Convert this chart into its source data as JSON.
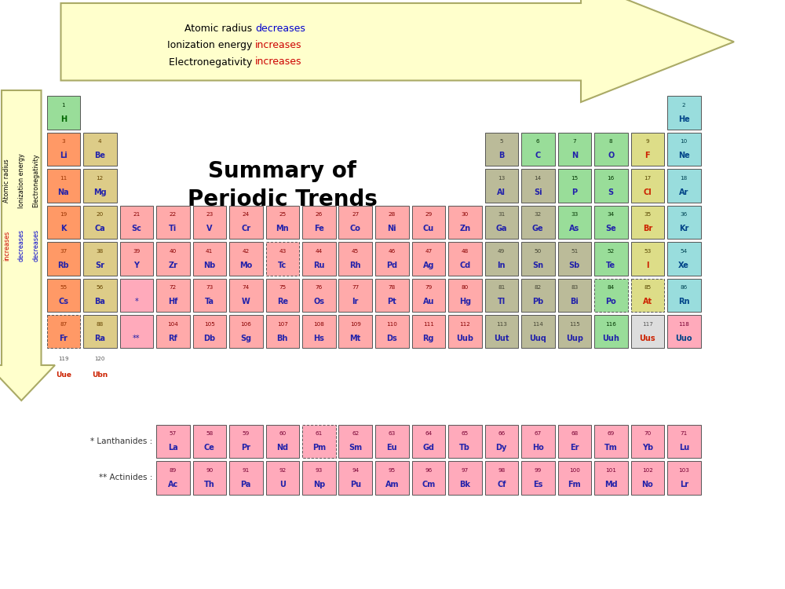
{
  "title": "Summary of\nPeriodic Trends",
  "elements": [
    {
      "sym": "H",
      "num": 1,
      "col": 1,
      "row": 1,
      "color": "#99DD99"
    },
    {
      "sym": "He",
      "num": 2,
      "col": 18,
      "row": 1,
      "color": "#99DDDD"
    },
    {
      "sym": "Li",
      "num": 3,
      "col": 1,
      "row": 2,
      "color": "#FF9966"
    },
    {
      "sym": "Be",
      "num": 4,
      "col": 2,
      "row": 2,
      "color": "#DDCC88"
    },
    {
      "sym": "B",
      "num": 5,
      "col": 13,
      "row": 2,
      "color": "#BBBB99"
    },
    {
      "sym": "C",
      "num": 6,
      "col": 14,
      "row": 2,
      "color": "#99DD99"
    },
    {
      "sym": "N",
      "num": 7,
      "col": 15,
      "row": 2,
      "color": "#99DD99"
    },
    {
      "sym": "O",
      "num": 8,
      "col": 16,
      "row": 2,
      "color": "#99DD99"
    },
    {
      "sym": "F",
      "num": 9,
      "col": 17,
      "row": 2,
      "color": "#DDDD88"
    },
    {
      "sym": "Ne",
      "num": 10,
      "col": 18,
      "row": 2,
      "color": "#99DDDD"
    },
    {
      "sym": "Na",
      "num": 11,
      "col": 1,
      "row": 3,
      "color": "#FF9966"
    },
    {
      "sym": "Mg",
      "num": 12,
      "col": 2,
      "row": 3,
      "color": "#DDCC88"
    },
    {
      "sym": "Al",
      "num": 13,
      "col": 13,
      "row": 3,
      "color": "#BBBB99"
    },
    {
      "sym": "Si",
      "num": 14,
      "col": 14,
      "row": 3,
      "color": "#BBBB99"
    },
    {
      "sym": "P",
      "num": 15,
      "col": 15,
      "row": 3,
      "color": "#99DD99"
    },
    {
      "sym": "S",
      "num": 16,
      "col": 16,
      "row": 3,
      "color": "#99DD99"
    },
    {
      "sym": "Cl",
      "num": 17,
      "col": 17,
      "row": 3,
      "color": "#DDDD88"
    },
    {
      "sym": "Ar",
      "num": 18,
      "col": 18,
      "row": 3,
      "color": "#99DDDD"
    },
    {
      "sym": "K",
      "num": 19,
      "col": 1,
      "row": 4,
      "color": "#FF9966"
    },
    {
      "sym": "Ca",
      "num": 20,
      "col": 2,
      "row": 4,
      "color": "#DDCC88"
    },
    {
      "sym": "Sc",
      "num": 21,
      "col": 3,
      "row": 4,
      "color": "#FFAAAA"
    },
    {
      "sym": "Ti",
      "num": 22,
      "col": 4,
      "row": 4,
      "color": "#FFAAAA"
    },
    {
      "sym": "V",
      "num": 23,
      "col": 5,
      "row": 4,
      "color": "#FFAAAA"
    },
    {
      "sym": "Cr",
      "num": 24,
      "col": 6,
      "row": 4,
      "color": "#FFAAAA"
    },
    {
      "sym": "Mn",
      "num": 25,
      "col": 7,
      "row": 4,
      "color": "#FFAAAA"
    },
    {
      "sym": "Fe",
      "num": 26,
      "col": 8,
      "row": 4,
      "color": "#FFAAAA"
    },
    {
      "sym": "Co",
      "num": 27,
      "col": 9,
      "row": 4,
      "color": "#FFAAAA"
    },
    {
      "sym": "Ni",
      "num": 28,
      "col": 10,
      "row": 4,
      "color": "#FFAAAA"
    },
    {
      "sym": "Cu",
      "num": 29,
      "col": 11,
      "row": 4,
      "color": "#FFAAAA"
    },
    {
      "sym": "Zn",
      "num": 30,
      "col": 12,
      "row": 4,
      "color": "#FFAAAA"
    },
    {
      "sym": "Ga",
      "num": 31,
      "col": 13,
      "row": 4,
      "color": "#BBBB99"
    },
    {
      "sym": "Ge",
      "num": 32,
      "col": 14,
      "row": 4,
      "color": "#BBBB99"
    },
    {
      "sym": "As",
      "num": 33,
      "col": 15,
      "row": 4,
      "color": "#99DD99"
    },
    {
      "sym": "Se",
      "num": 34,
      "col": 16,
      "row": 4,
      "color": "#99DD99"
    },
    {
      "sym": "Br",
      "num": 35,
      "col": 17,
      "row": 4,
      "color": "#DDDD88"
    },
    {
      "sym": "Kr",
      "num": 36,
      "col": 18,
      "row": 4,
      "color": "#99DDDD"
    },
    {
      "sym": "Rb",
      "num": 37,
      "col": 1,
      "row": 5,
      "color": "#FF9966"
    },
    {
      "sym": "Sr",
      "num": 38,
      "col": 2,
      "row": 5,
      "color": "#DDCC88"
    },
    {
      "sym": "Y",
      "num": 39,
      "col": 3,
      "row": 5,
      "color": "#FFAAAA"
    },
    {
      "sym": "Zr",
      "num": 40,
      "col": 4,
      "row": 5,
      "color": "#FFAAAA"
    },
    {
      "sym": "Nb",
      "num": 41,
      "col": 5,
      "row": 5,
      "color": "#FFAAAA"
    },
    {
      "sym": "Mo",
      "num": 42,
      "col": 6,
      "row": 5,
      "color": "#FFAAAA"
    },
    {
      "sym": "Tc",
      "num": 43,
      "col": 7,
      "row": 5,
      "color": "#FFAAAA",
      "dashed": true
    },
    {
      "sym": "Ru",
      "num": 44,
      "col": 8,
      "row": 5,
      "color": "#FFAAAA"
    },
    {
      "sym": "Rh",
      "num": 45,
      "col": 9,
      "row": 5,
      "color": "#FFAAAA"
    },
    {
      "sym": "Pd",
      "num": 46,
      "col": 10,
      "row": 5,
      "color": "#FFAAAA"
    },
    {
      "sym": "Ag",
      "num": 47,
      "col": 11,
      "row": 5,
      "color": "#FFAAAA"
    },
    {
      "sym": "Cd",
      "num": 48,
      "col": 12,
      "row": 5,
      "color": "#FFAAAA"
    },
    {
      "sym": "In",
      "num": 49,
      "col": 13,
      "row": 5,
      "color": "#BBBB99"
    },
    {
      "sym": "Sn",
      "num": 50,
      "col": 14,
      "row": 5,
      "color": "#BBBB99"
    },
    {
      "sym": "Sb",
      "num": 51,
      "col": 15,
      "row": 5,
      "color": "#BBBB99"
    },
    {
      "sym": "Te",
      "num": 52,
      "col": 16,
      "row": 5,
      "color": "#99DD99"
    },
    {
      "sym": "I",
      "num": 53,
      "col": 17,
      "row": 5,
      "color": "#DDDD88"
    },
    {
      "sym": "Xe",
      "num": 54,
      "col": 18,
      "row": 5,
      "color": "#99DDDD"
    },
    {
      "sym": "Cs",
      "num": 55,
      "col": 1,
      "row": 6,
      "color": "#FF9966"
    },
    {
      "sym": "Ba",
      "num": 56,
      "col": 2,
      "row": 6,
      "color": "#DDCC88"
    },
    {
      "sym": "*",
      "num": null,
      "col": 3,
      "row": 6,
      "color": "#FFAABB"
    },
    {
      "sym": "Hf",
      "num": 72,
      "col": 4,
      "row": 6,
      "color": "#FFAAAA"
    },
    {
      "sym": "Ta",
      "num": 73,
      "col": 5,
      "row": 6,
      "color": "#FFAAAA"
    },
    {
      "sym": "W",
      "num": 74,
      "col": 6,
      "row": 6,
      "color": "#FFAAAA"
    },
    {
      "sym": "Re",
      "num": 75,
      "col": 7,
      "row": 6,
      "color": "#FFAAAA"
    },
    {
      "sym": "Os",
      "num": 76,
      "col": 8,
      "row": 6,
      "color": "#FFAAAA"
    },
    {
      "sym": "Ir",
      "num": 77,
      "col": 9,
      "row": 6,
      "color": "#FFAAAA"
    },
    {
      "sym": "Pt",
      "num": 78,
      "col": 10,
      "row": 6,
      "color": "#FFAAAA"
    },
    {
      "sym": "Au",
      "num": 79,
      "col": 11,
      "row": 6,
      "color": "#FFAAAA"
    },
    {
      "sym": "Hg",
      "num": 80,
      "col": 12,
      "row": 6,
      "color": "#FFAAAA"
    },
    {
      "sym": "Tl",
      "num": 81,
      "col": 13,
      "row": 6,
      "color": "#BBBB99"
    },
    {
      "sym": "Pb",
      "num": 82,
      "col": 14,
      "row": 6,
      "color": "#BBBB99"
    },
    {
      "sym": "Bi",
      "num": 83,
      "col": 15,
      "row": 6,
      "color": "#BBBB99"
    },
    {
      "sym": "Po",
      "num": 84,
      "col": 16,
      "row": 6,
      "color": "#99DD99",
      "dashed": true
    },
    {
      "sym": "At",
      "num": 85,
      "col": 17,
      "row": 6,
      "color": "#DDDD88",
      "dashed": true
    },
    {
      "sym": "Rn",
      "num": 86,
      "col": 18,
      "row": 6,
      "color": "#99DDDD"
    },
    {
      "sym": "Fr",
      "num": 87,
      "col": 1,
      "row": 7,
      "color": "#FF9966",
      "dashed": true
    },
    {
      "sym": "Ra",
      "num": 88,
      "col": 2,
      "row": 7,
      "color": "#DDCC88"
    },
    {
      "sym": "**",
      "num": null,
      "col": 3,
      "row": 7,
      "color": "#FFAABB"
    },
    {
      "sym": "Rf",
      "num": 104,
      "col": 4,
      "row": 7,
      "color": "#FFAAAA"
    },
    {
      "sym": "Db",
      "num": 105,
      "col": 5,
      "row": 7,
      "color": "#FFAAAA"
    },
    {
      "sym": "Sg",
      "num": 106,
      "col": 6,
      "row": 7,
      "color": "#FFAAAA"
    },
    {
      "sym": "Bh",
      "num": 107,
      "col": 7,
      "row": 7,
      "color": "#FFAAAA"
    },
    {
      "sym": "Hs",
      "num": 108,
      "col": 8,
      "row": 7,
      "color": "#FFAAAA"
    },
    {
      "sym": "Mt",
      "num": 109,
      "col": 9,
      "row": 7,
      "color": "#FFAAAA"
    },
    {
      "sym": "Ds",
      "num": 110,
      "col": 10,
      "row": 7,
      "color": "#FFAAAA"
    },
    {
      "sym": "Rg",
      "num": 111,
      "col": 11,
      "row": 7,
      "color": "#FFAAAA"
    },
    {
      "sym": "Uub",
      "num": 112,
      "col": 12,
      "row": 7,
      "color": "#FFAAAA"
    },
    {
      "sym": "Uut",
      "num": 113,
      "col": 13,
      "row": 7,
      "color": "#BBBB99"
    },
    {
      "sym": "Uuq",
      "num": 114,
      "col": 14,
      "row": 7,
      "color": "#BBBB99"
    },
    {
      "sym": "Uup",
      "num": 115,
      "col": 15,
      "row": 7,
      "color": "#BBBB99"
    },
    {
      "sym": "Uuh",
      "num": 116,
      "col": 16,
      "row": 7,
      "color": "#99DD99"
    },
    {
      "sym": "Uus",
      "num": 117,
      "col": 17,
      "row": 7,
      "color": "#DDDDDD"
    },
    {
      "sym": "Uuo",
      "num": 118,
      "col": 18,
      "row": 7,
      "color": "#FFAABB"
    },
    {
      "sym": "La",
      "num": 57,
      "col": 4,
      "row": 10,
      "color": "#FFAABB"
    },
    {
      "sym": "Ce",
      "num": 58,
      "col": 5,
      "row": 10,
      "color": "#FFAABB"
    },
    {
      "sym": "Pr",
      "num": 59,
      "col": 6,
      "row": 10,
      "color": "#FFAABB"
    },
    {
      "sym": "Nd",
      "num": 60,
      "col": 7,
      "row": 10,
      "color": "#FFAABB"
    },
    {
      "sym": "Pm",
      "num": 61,
      "col": 8,
      "row": 10,
      "color": "#FFAABB",
      "dashed": true
    },
    {
      "sym": "Sm",
      "num": 62,
      "col": 9,
      "row": 10,
      "color": "#FFAABB"
    },
    {
      "sym": "Eu",
      "num": 63,
      "col": 10,
      "row": 10,
      "color": "#FFAABB"
    },
    {
      "sym": "Gd",
      "num": 64,
      "col": 11,
      "row": 10,
      "color": "#FFAABB"
    },
    {
      "sym": "Tb",
      "num": 65,
      "col": 12,
      "row": 10,
      "color": "#FFAABB"
    },
    {
      "sym": "Dy",
      "num": 66,
      "col": 13,
      "row": 10,
      "color": "#FFAABB"
    },
    {
      "sym": "Ho",
      "num": 67,
      "col": 14,
      "row": 10,
      "color": "#FFAABB"
    },
    {
      "sym": "Er",
      "num": 68,
      "col": 15,
      "row": 10,
      "color": "#FFAABB"
    },
    {
      "sym": "Tm",
      "num": 69,
      "col": 16,
      "row": 10,
      "color": "#FFAABB"
    },
    {
      "sym": "Yb",
      "num": 70,
      "col": 17,
      "row": 10,
      "color": "#FFAABB"
    },
    {
      "sym": "Lu",
      "num": 71,
      "col": 18,
      "row": 10,
      "color": "#FFAABB"
    },
    {
      "sym": "Ac",
      "num": 89,
      "col": 4,
      "row": 11,
      "color": "#FFAABB"
    },
    {
      "sym": "Th",
      "num": 90,
      "col": 5,
      "row": 11,
      "color": "#FFAABB"
    },
    {
      "sym": "Pa",
      "num": 91,
      "col": 6,
      "row": 11,
      "color": "#FFAABB"
    },
    {
      "sym": "U",
      "num": 92,
      "col": 7,
      "row": 11,
      "color": "#FFAABB"
    },
    {
      "sym": "Np",
      "num": 93,
      "col": 8,
      "row": 11,
      "color": "#FFAABB"
    },
    {
      "sym": "Pu",
      "num": 94,
      "col": 9,
      "row": 11,
      "color": "#FFAABB"
    },
    {
      "sym": "Am",
      "num": 95,
      "col": 10,
      "row": 11,
      "color": "#FFAABB"
    },
    {
      "sym": "Cm",
      "num": 96,
      "col": 11,
      "row": 11,
      "color": "#FFAABB"
    },
    {
      "sym": "Bk",
      "num": 97,
      "col": 12,
      "row": 11,
      "color": "#FFAABB"
    },
    {
      "sym": "Cf",
      "num": 98,
      "col": 13,
      "row": 11,
      "color": "#FFAABB"
    },
    {
      "sym": "Es",
      "num": 99,
      "col": 14,
      "row": 11,
      "color": "#FFAABB"
    },
    {
      "sym": "Fm",
      "num": 100,
      "col": 15,
      "row": 11,
      "color": "#FFAABB"
    },
    {
      "sym": "Md",
      "num": 101,
      "col": 16,
      "row": 11,
      "color": "#FFAABB"
    },
    {
      "sym": "No",
      "num": 102,
      "col": 17,
      "row": 11,
      "color": "#FFAABB"
    },
    {
      "sym": "Lr",
      "num": 103,
      "col": 18,
      "row": 11,
      "color": "#FFAABB"
    }
  ],
  "sym_colors": {
    "H": "#006600",
    "He": "#004488",
    "Ne": "#004488",
    "Ar": "#004488",
    "Kr": "#004488",
    "Xe": "#004488",
    "Rn": "#004488",
    "Uuo": "#004488",
    "F": "#CC2200",
    "Cl": "#CC2200",
    "Br": "#CC2200",
    "I": "#CC2200",
    "At": "#CC2200",
    "Uus": "#CC2200",
    "default": "#2222AA"
  }
}
